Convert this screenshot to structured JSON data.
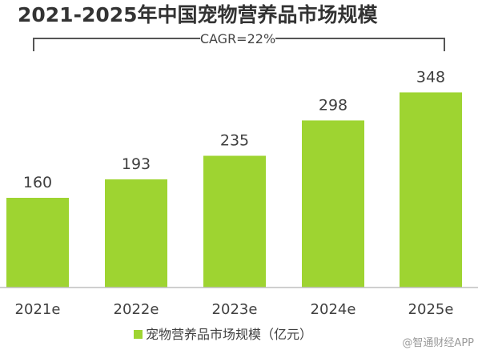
{
  "chart_data": {
    "type": "bar",
    "title": "2021-2025年中国宠物营养品市场规模",
    "annotation": "CAGR=22%",
    "categories": [
      "2021e",
      "2022e",
      "2023e",
      "2024e",
      "2025e"
    ],
    "series": [
      {
        "name": "宠物营养品市场规模（亿元）",
        "values": [
          160,
          193,
          235,
          298,
          348
        ]
      }
    ],
    "ylim": [
      0,
      400
    ],
    "grid": false,
    "legend": "bottom-center",
    "bar_color": "#9ed431",
    "axis_color": "#bfbfbf"
  },
  "watermark": "@智通财经APP"
}
